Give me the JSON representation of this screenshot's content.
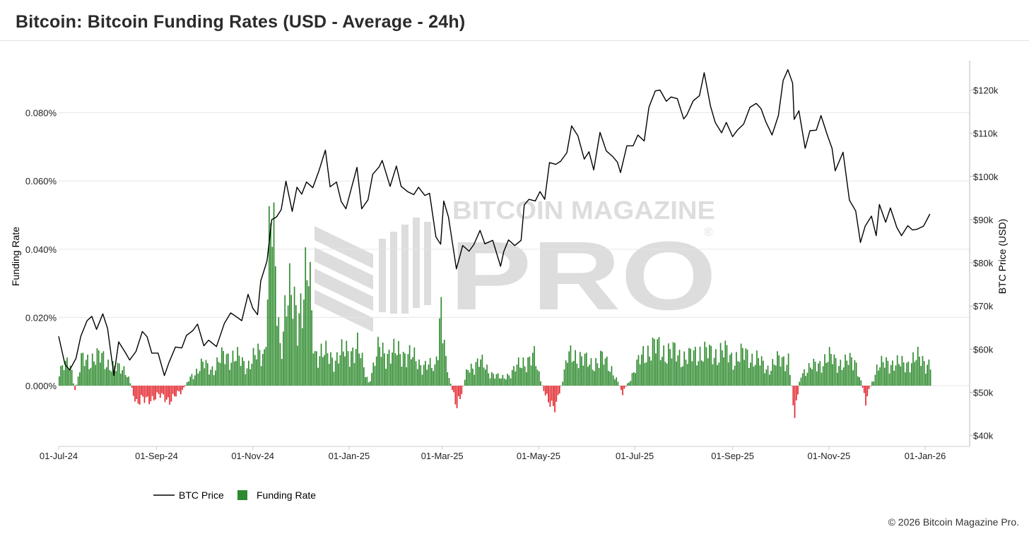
{
  "title": "Bitcoin: Bitcoin Funding Rates (USD - Average - 24h)",
  "copyright": "© 2026 Bitcoin Magazine Pro.",
  "watermark": {
    "line1": "BITCOIN MAGAZINE",
    "line2": "PRO",
    "mark": "®"
  },
  "chart_data": {
    "type": "bar+line",
    "x_type": "date",
    "x_range": [
      "2024-07-01",
      "2026-01-05"
    ],
    "x_ticks": [
      {
        "date": "2024-07-01",
        "label": "01-Jul-24"
      },
      {
        "date": "2024-09-01",
        "label": "01-Sep-24"
      },
      {
        "date": "2024-11-01",
        "label": "01-Nov-24"
      },
      {
        "date": "2025-01-01",
        "label": "01-Jan-25"
      },
      {
        "date": "2025-03-01",
        "label": "01-Mar-25"
      },
      {
        "date": "2025-05-01",
        "label": "01-May-25"
      },
      {
        "date": "2025-07-01",
        "label": "01-Jul-25"
      },
      {
        "date": "2025-09-01",
        "label": "01-Sep-25"
      },
      {
        "date": "2025-11-01",
        "label": "01-Nov-25"
      },
      {
        "date": "2026-01-01",
        "label": "01-Jan-26"
      }
    ],
    "y_left": {
      "label": "Funding Rate",
      "ticks": [
        "0.000%",
        "0.020%",
        "0.040%",
        "0.060%",
        "0.080%"
      ],
      "tick_values": [
        0,
        0.02,
        0.04,
        0.06,
        0.08
      ],
      "range": [
        -0.0178,
        0.094
      ]
    },
    "y_right": {
      "label": "BTC Price (USD)",
      "ticks": [
        "$40k",
        "$50k",
        "$60k",
        "$70k",
        "$80k",
        "$90k",
        "$100k",
        "$110k",
        "$120k"
      ],
      "tick_values": [
        40000,
        50000,
        60000,
        70000,
        80000,
        90000,
        100000,
        110000,
        120000
      ],
      "range": [
        37500,
        125800
      ]
    },
    "grid": "horizontal",
    "legend_position": "bottom-left",
    "positive_color": "#2d8a2d",
    "negative_color": "#e3242b",
    "line_color": "#000000",
    "series": [
      {
        "name": "BTC Price",
        "type": "line",
        "points": [
          [
            "2024-07-01",
            63000
          ],
          [
            "2024-07-05",
            56500
          ],
          [
            "2024-07-08",
            55200
          ],
          [
            "2024-07-12",
            57900
          ],
          [
            "2024-07-15",
            63000
          ],
          [
            "2024-07-19",
            66600
          ],
          [
            "2024-07-22",
            67600
          ],
          [
            "2024-07-25",
            64600
          ],
          [
            "2024-07-29",
            68200
          ],
          [
            "2024-08-01",
            64800
          ],
          [
            "2024-08-05",
            53900
          ],
          [
            "2024-08-08",
            61700
          ],
          [
            "2024-08-12",
            59400
          ],
          [
            "2024-08-15",
            57500
          ],
          [
            "2024-08-19",
            59500
          ],
          [
            "2024-08-23",
            64100
          ],
          [
            "2024-08-26",
            62900
          ],
          [
            "2024-08-29",
            59100
          ],
          [
            "2024-09-02",
            59100
          ],
          [
            "2024-09-06",
            53900
          ],
          [
            "2024-09-09",
            57000
          ],
          [
            "2024-09-13",
            60500
          ],
          [
            "2024-09-17",
            60300
          ],
          [
            "2024-09-20",
            63200
          ],
          [
            "2024-09-24",
            64300
          ],
          [
            "2024-09-27",
            65800
          ],
          [
            "2024-10-01",
            60800
          ],
          [
            "2024-10-04",
            62100
          ],
          [
            "2024-10-09",
            60600
          ],
          [
            "2024-10-14",
            66000
          ],
          [
            "2024-10-18",
            68400
          ],
          [
            "2024-10-22",
            67400
          ],
          [
            "2024-10-25",
            66600
          ],
          [
            "2024-10-29",
            72700
          ],
          [
            "2024-11-01",
            69500
          ],
          [
            "2024-11-04",
            68000
          ],
          [
            "2024-11-06",
            75800
          ],
          [
            "2024-11-10",
            80400
          ],
          [
            "2024-11-13",
            90000
          ],
          [
            "2024-11-16",
            90600
          ],
          [
            "2024-11-19",
            92300
          ],
          [
            "2024-11-22",
            98900
          ],
          [
            "2024-11-26",
            91900
          ],
          [
            "2024-11-29",
            97500
          ],
          [
            "2024-12-02",
            95900
          ],
          [
            "2024-12-05",
            98700
          ],
          [
            "2024-12-09",
            97400
          ],
          [
            "2024-12-13",
            101400
          ],
          [
            "2024-12-17",
            106100
          ],
          [
            "2024-12-20",
            97600
          ],
          [
            "2024-12-24",
            98700
          ],
          [
            "2024-12-27",
            94200
          ],
          [
            "2024-12-30",
            92500
          ],
          [
            "2025-01-03",
            98000
          ],
          [
            "2025-01-06",
            102100
          ],
          [
            "2025-01-09",
            92500
          ],
          [
            "2025-01-13",
            94600
          ],
          [
            "2025-01-16",
            100500
          ],
          [
            "2025-01-20",
            102200
          ],
          [
            "2025-01-22",
            103700
          ],
          [
            "2025-01-27",
            97700
          ],
          [
            "2025-01-31",
            102400
          ],
          [
            "2025-02-03",
            97700
          ],
          [
            "2025-02-07",
            96500
          ],
          [
            "2025-02-11",
            95800
          ],
          [
            "2025-02-14",
            97500
          ],
          [
            "2025-02-18",
            95600
          ],
          [
            "2025-02-21",
            96100
          ],
          [
            "2025-02-25",
            86000
          ],
          [
            "2025-02-28",
            84300
          ],
          [
            "2025-03-02",
            94300
          ],
          [
            "2025-03-05",
            90600
          ],
          [
            "2025-03-10",
            78600
          ],
          [
            "2025-03-14",
            84000
          ],
          [
            "2025-03-18",
            82700
          ],
          [
            "2025-03-21",
            84200
          ],
          [
            "2025-03-25",
            87500
          ],
          [
            "2025-03-28",
            84400
          ],
          [
            "2025-04-02",
            85200
          ],
          [
            "2025-04-07",
            79200
          ],
          [
            "2025-04-09",
            82600
          ],
          [
            "2025-04-12",
            85300
          ],
          [
            "2025-04-16",
            84000
          ],
          [
            "2025-04-20",
            85200
          ],
          [
            "2025-04-22",
            93400
          ],
          [
            "2025-04-25",
            94700
          ],
          [
            "2025-04-29",
            94300
          ],
          [
            "2025-05-02",
            96500
          ],
          [
            "2025-05-05",
            94700
          ],
          [
            "2025-05-08",
            103200
          ],
          [
            "2025-05-12",
            102800
          ],
          [
            "2025-05-15",
            103500
          ],
          [
            "2025-05-19",
            105500
          ],
          [
            "2025-05-22",
            111700
          ],
          [
            "2025-05-26",
            109400
          ],
          [
            "2025-05-30",
            104000
          ],
          [
            "2025-06-02",
            105700
          ],
          [
            "2025-06-05",
            101500
          ],
          [
            "2025-06-09",
            110200
          ],
          [
            "2025-06-13",
            105900
          ],
          [
            "2025-06-17",
            104600
          ],
          [
            "2025-06-20",
            103300
          ],
          [
            "2025-06-22",
            100900
          ],
          [
            "2025-06-26",
            107100
          ],
          [
            "2025-06-30",
            107100
          ],
          [
            "2025-07-03",
            109600
          ],
          [
            "2025-07-07",
            108200
          ],
          [
            "2025-07-10",
            116000
          ],
          [
            "2025-07-14",
            119800
          ],
          [
            "2025-07-17",
            120000
          ],
          [
            "2025-07-21",
            117400
          ],
          [
            "2025-07-24",
            118400
          ],
          [
            "2025-07-28",
            118000
          ],
          [
            "2025-08-01",
            113300
          ],
          [
            "2025-08-03",
            114200
          ],
          [
            "2025-08-07",
            117500
          ],
          [
            "2025-08-11",
            118700
          ],
          [
            "2025-08-14",
            124000
          ],
          [
            "2025-08-18",
            116300
          ],
          [
            "2025-08-21",
            112500
          ],
          [
            "2025-08-25",
            110100
          ],
          [
            "2025-08-28",
            112500
          ],
          [
            "2025-09-01",
            109200
          ],
          [
            "2025-09-04",
            110700
          ],
          [
            "2025-09-08",
            112100
          ],
          [
            "2025-09-12",
            116000
          ],
          [
            "2025-09-16",
            116900
          ],
          [
            "2025-09-19",
            115700
          ],
          [
            "2025-09-22",
            112700
          ],
          [
            "2025-09-26",
            109600
          ],
          [
            "2025-09-30",
            114100
          ],
          [
            "2025-10-03",
            122200
          ],
          [
            "2025-10-06",
            124700
          ],
          [
            "2025-10-09",
            121600
          ],
          [
            "2025-10-10",
            113200
          ],
          [
            "2025-10-13",
            115200
          ],
          [
            "2025-10-17",
            106500
          ],
          [
            "2025-10-20",
            110600
          ],
          [
            "2025-10-24",
            110700
          ],
          [
            "2025-10-27",
            114100
          ],
          [
            "2025-10-31",
            109600
          ],
          [
            "2025-11-03",
            106500
          ],
          [
            "2025-11-05",
            101300
          ],
          [
            "2025-11-10",
            105600
          ],
          [
            "2025-11-14",
            94500
          ],
          [
            "2025-11-18",
            92000
          ],
          [
            "2025-11-21",
            84700
          ],
          [
            "2025-11-24",
            88500
          ],
          [
            "2025-11-28",
            90800
          ],
          [
            "2025-12-01",
            86300
          ],
          [
            "2025-12-03",
            93500
          ],
          [
            "2025-12-07",
            89400
          ],
          [
            "2025-12-10",
            92700
          ],
          [
            "2025-12-14",
            88200
          ],
          [
            "2025-12-17",
            86300
          ],
          [
            "2025-12-21",
            88600
          ],
          [
            "2025-12-24",
            87600
          ],
          [
            "2025-12-27",
            87800
          ],
          [
            "2025-12-31",
            88500
          ],
          [
            "2026-01-04",
            91300
          ]
        ]
      },
      {
        "name": "Funding Rate",
        "type": "bar",
        "points": [
          [
            "2024-07-01",
            0.004
          ],
          [
            "2024-07-08",
            0.007
          ],
          [
            "2024-07-11",
            -0.002
          ],
          [
            "2024-07-15",
            0.007
          ],
          [
            "2024-07-22",
            0.008
          ],
          [
            "2024-07-29",
            0.008
          ],
          [
            "2024-08-05",
            0.005
          ],
          [
            "2024-08-12",
            0.005
          ],
          [
            "2024-08-19",
            -0.005
          ],
          [
            "2024-08-26",
            -0.004
          ],
          [
            "2024-09-02",
            -0.003
          ],
          [
            "2024-09-09",
            -0.004
          ],
          [
            "2024-09-16",
            -0.002
          ],
          [
            "2024-09-23",
            0.003
          ],
          [
            "2024-09-30",
            0.006
          ],
          [
            "2024-10-07",
            0.005
          ],
          [
            "2024-10-14",
            0.009
          ],
          [
            "2024-10-21",
            0.008
          ],
          [
            "2024-10-28",
            0.006
          ],
          [
            "2024-11-04",
            0.009
          ],
          [
            "2024-11-08",
            0.01
          ],
          [
            "2024-11-12",
            0.049
          ],
          [
            "2024-11-18",
            0.012
          ],
          [
            "2024-11-22",
            0.025
          ],
          [
            "2024-11-29",
            0.022
          ],
          [
            "2024-12-03",
            0.027
          ],
          [
            "2024-12-06",
            0.031
          ],
          [
            "2024-12-10",
            0.01
          ],
          [
            "2024-12-16",
            0.009
          ],
          [
            "2024-12-23",
            0.008
          ],
          [
            "2024-12-30",
            0.01
          ],
          [
            "2025-01-06",
            0.011
          ],
          [
            "2025-01-13",
            0.001
          ],
          [
            "2025-01-20",
            0.011
          ],
          [
            "2025-01-27",
            0.009
          ],
          [
            "2025-02-03",
            0.01
          ],
          [
            "2025-02-10",
            0.008
          ],
          [
            "2025-02-17",
            0.006
          ],
          [
            "2025-02-24",
            0.005
          ],
          [
            "2025-02-28",
            0.024
          ],
          [
            "2025-03-03",
            0.006
          ],
          [
            "2025-03-10",
            -0.007
          ],
          [
            "2025-03-17",
            0.005
          ],
          [
            "2025-03-24",
            0.007
          ],
          [
            "2025-03-31",
            0.004
          ],
          [
            "2025-04-07",
            0.002
          ],
          [
            "2025-04-14",
            0.004
          ],
          [
            "2025-04-21",
            0.007
          ],
          [
            "2025-04-28",
            0.008
          ],
          [
            "2025-05-05",
            -0.003
          ],
          [
            "2025-05-09",
            -0.005
          ],
          [
            "2025-05-12",
            -0.006
          ],
          [
            "2025-05-19",
            0.008
          ],
          [
            "2025-05-26",
            0.009
          ],
          [
            "2025-06-02",
            0.006
          ],
          [
            "2025-06-09",
            0.008
          ],
          [
            "2025-06-16",
            0.005
          ],
          [
            "2025-06-23",
            -0.002
          ],
          [
            "2025-06-30",
            0.004
          ],
          [
            "2025-07-07",
            0.01
          ],
          [
            "2025-07-14",
            0.011
          ],
          [
            "2025-07-21",
            0.01
          ],
          [
            "2025-07-28",
            0.009
          ],
          [
            "2025-08-04",
            0.008
          ],
          [
            "2025-08-11",
            0.01
          ],
          [
            "2025-08-18",
            0.009
          ],
          [
            "2025-08-25",
            0.01
          ],
          [
            "2025-09-01",
            0.008
          ],
          [
            "2025-09-08",
            0.009
          ],
          [
            "2025-09-15",
            0.008
          ],
          [
            "2025-09-22",
            0.005
          ],
          [
            "2025-09-29",
            0.007
          ],
          [
            "2025-10-06",
            0.008
          ],
          [
            "2025-10-10",
            -0.008
          ],
          [
            "2025-10-14",
            0.004
          ],
          [
            "2025-10-20",
            0.005
          ],
          [
            "2025-10-27",
            0.007
          ],
          [
            "2025-11-03",
            0.008
          ],
          [
            "2025-11-10",
            0.006
          ],
          [
            "2025-11-17",
            0.008
          ],
          [
            "2025-11-24",
            -0.004
          ],
          [
            "2025-12-01",
            0.005
          ],
          [
            "2025-12-08",
            0.007
          ],
          [
            "2025-12-15",
            0.006
          ],
          [
            "2025-12-22",
            0.007
          ],
          [
            "2025-12-29",
            0.008
          ],
          [
            "2026-01-04",
            0.006
          ]
        ]
      }
    ]
  }
}
